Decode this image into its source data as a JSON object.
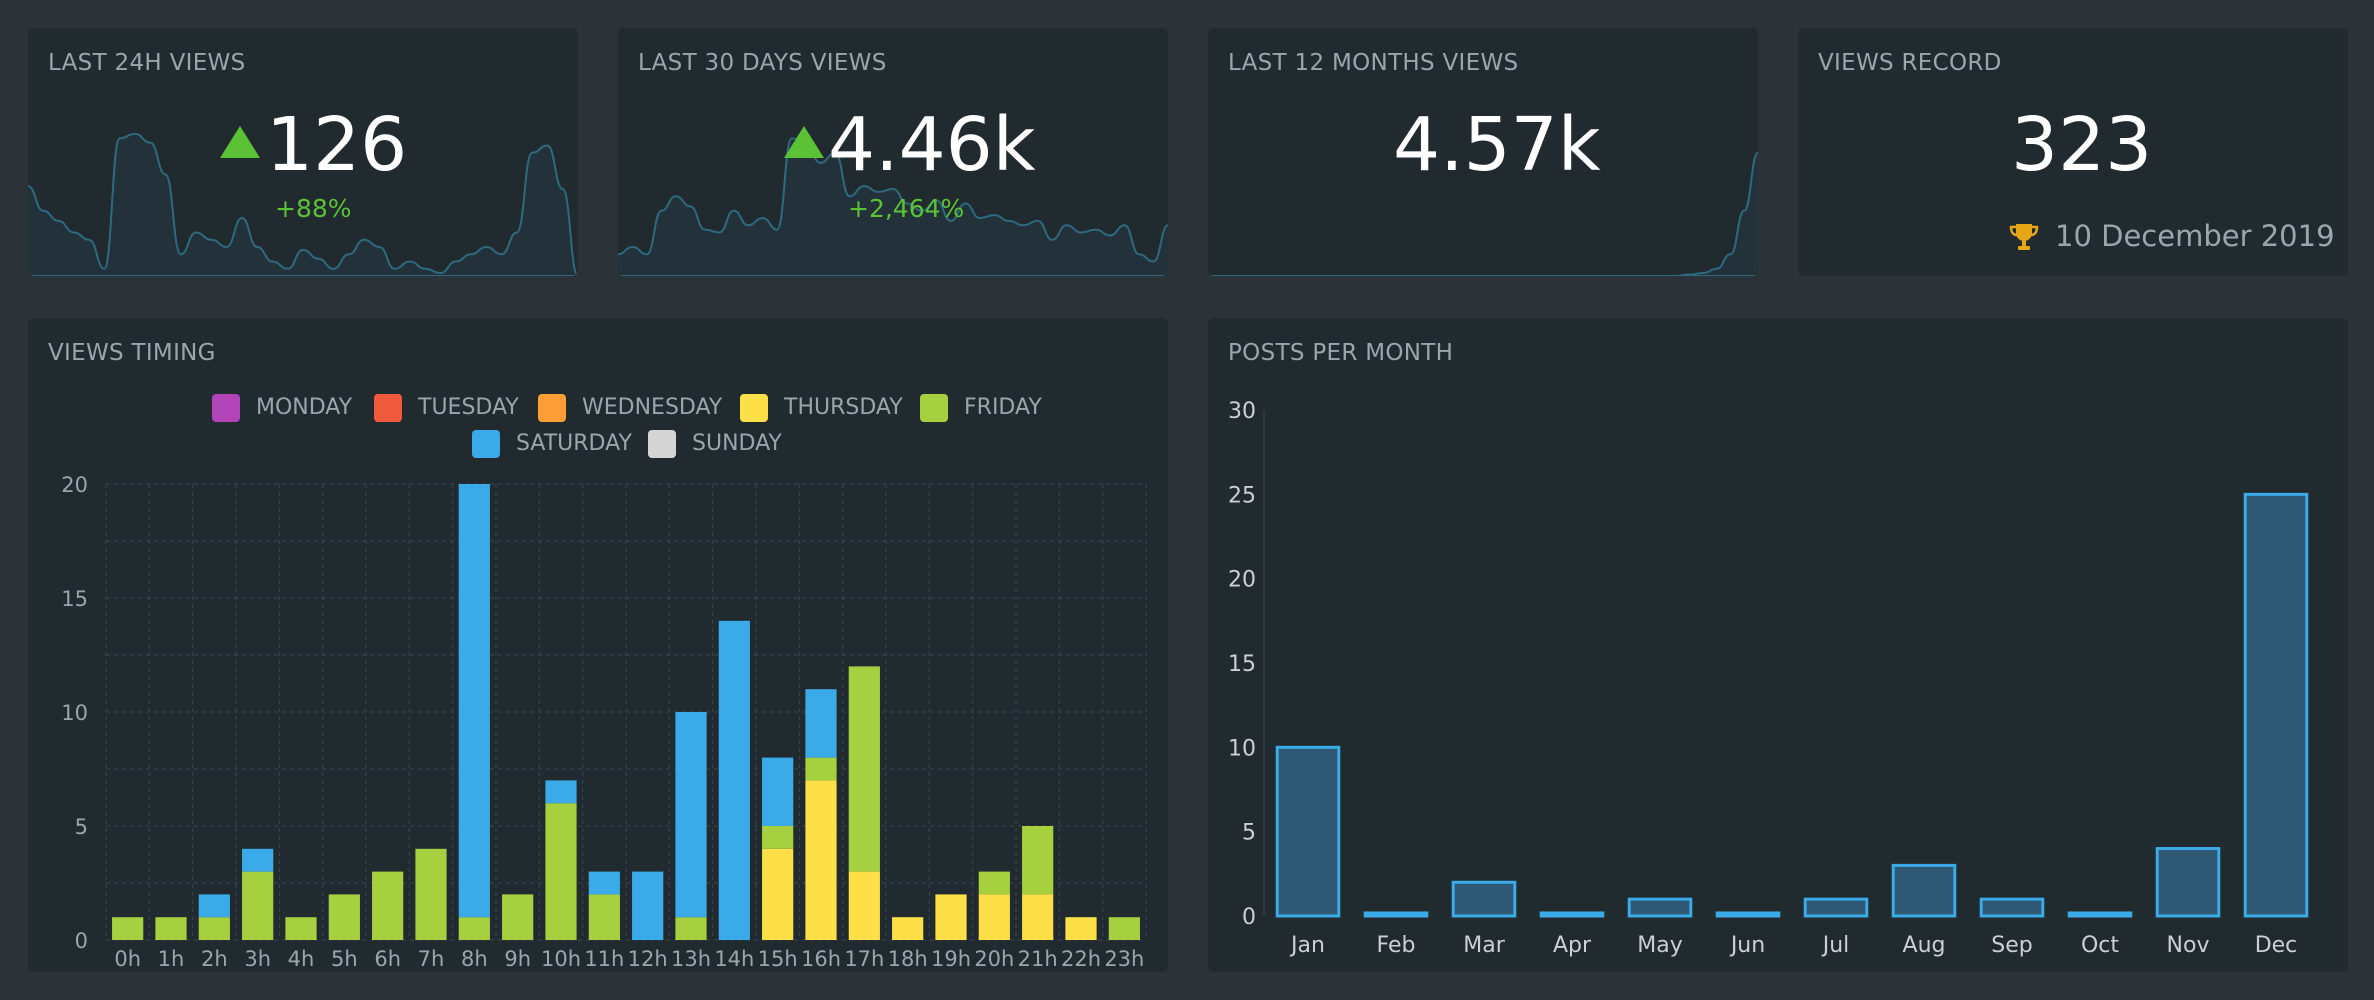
{
  "cards": {
    "last24h": {
      "title": "LAST 24H VIEWS",
      "value": "126",
      "change": "+88%"
    },
    "last30d": {
      "title": "LAST 30 DAYS VIEWS",
      "value": "4.46k",
      "change": "+2,464%"
    },
    "last12m": {
      "title": "LAST 12 MONTHS VIEWS",
      "value": "4.57k"
    },
    "record": {
      "title": "VIEWS RECORD",
      "value": "323",
      "date": "10 December 2019",
      "icon": "trophy-icon"
    }
  },
  "colors": {
    "up": "#5bc236",
    "spark_line": "#2e6a7f",
    "spark_fill": "#23313a",
    "saturday": "#3aabe8",
    "friday": "#a6d03f",
    "thursday": "#fde047",
    "posts_fill": "#2f5874",
    "posts_stroke": "#3aabe8"
  },
  "chart_data": [
    {
      "id": "views-timing",
      "type": "bar",
      "stacked": true,
      "title": "VIEWS TIMING",
      "categories": [
        "0h",
        "1h",
        "2h",
        "3h",
        "4h",
        "5h",
        "6h",
        "7h",
        "8h",
        "9h",
        "10h",
        "11h",
        "12h",
        "13h",
        "14h",
        "15h",
        "16h",
        "17h",
        "18h",
        "19h",
        "20h",
        "21h",
        "22h",
        "23h"
      ],
      "legend": [
        {
          "name": "MONDAY",
          "color": "#b144b8"
        },
        {
          "name": "TUESDAY",
          "color": "#f05a3c"
        },
        {
          "name": "WEDNESDAY",
          "color": "#fb9e35"
        },
        {
          "name": "THURSDAY",
          "color": "#fde047"
        },
        {
          "name": "FRIDAY",
          "color": "#a6d03f"
        },
        {
          "name": "SATURDAY",
          "color": "#3aabe8"
        },
        {
          "name": "SUNDAY",
          "color": "#d5d5d5"
        }
      ],
      "series": [
        {
          "name": "THURSDAY",
          "color": "#fde047",
          "values": [
            0,
            0,
            0,
            0,
            0,
            0,
            0,
            0,
            0,
            0,
            0,
            0,
            0,
            0,
            0,
            4,
            7,
            3,
            1,
            2,
            2,
            2,
            1,
            0
          ]
        },
        {
          "name": "FRIDAY",
          "color": "#a6d03f",
          "values": [
            1,
            1,
            1,
            3,
            1,
            2,
            3,
            4,
            1,
            2,
            6,
            2,
            0,
            1,
            0,
            1,
            1,
            9,
            0,
            0,
            1,
            3,
            0,
            1
          ]
        },
        {
          "name": "SATURDAY",
          "color": "#3aabe8",
          "values": [
            0,
            0,
            1,
            1,
            0,
            0,
            0,
            0,
            19,
            0,
            1,
            1,
            3,
            9,
            14,
            3,
            3,
            0,
            0,
            0,
            0,
            0,
            0,
            0
          ]
        }
      ],
      "yticks": [
        0,
        5,
        10,
        15,
        20
      ],
      "ylim": [
        0,
        20
      ]
    },
    {
      "id": "posts-per-month",
      "type": "bar",
      "title": "POSTS PER MONTH",
      "categories": [
        "Jan",
        "Feb",
        "Mar",
        "Apr",
        "May",
        "Jun",
        "Jul",
        "Aug",
        "Sep",
        "Oct",
        "Nov",
        "Dec"
      ],
      "values": [
        10,
        0,
        2,
        0,
        1,
        0,
        1,
        3,
        1,
        0,
        4,
        25
      ],
      "yticks": [
        0,
        5,
        10,
        15,
        20,
        25,
        30
      ],
      "ylim": [
        0,
        30
      ]
    }
  ],
  "sparklines": {
    "last24h": [
      0.62,
      0.45,
      0.38,
      0.3,
      0.25,
      0.05,
      0.95,
      0.98,
      0.92,
      0.7,
      0.15,
      0.3,
      0.25,
      0.2,
      0.4,
      0.2,
      0.1,
      0.05,
      0.18,
      0.12,
      0.05,
      0.15,
      0.25,
      0.2,
      0.05,
      0.1,
      0.05,
      0.02,
      0.1,
      0.15,
      0.2,
      0.15,
      0.3,
      0.85,
      0.9,
      0.6,
      0.0
    ],
    "last30d": [
      0.15,
      0.2,
      0.15,
      0.45,
      0.55,
      0.48,
      0.32,
      0.3,
      0.45,
      0.35,
      0.4,
      0.32,
      0.95,
      0.9,
      0.78,
      0.85,
      0.55,
      0.62,
      0.58,
      0.6,
      0.5,
      0.45,
      0.52,
      0.38,
      0.5,
      0.4,
      0.42,
      0.38,
      0.35,
      0.38,
      0.25,
      0.35,
      0.3,
      0.32,
      0.28,
      0.35,
      0.15,
      0.1,
      0.35
    ],
    "last12m": [
      0,
      0,
      0,
      0,
      0,
      0,
      0,
      0,
      0,
      0,
      0,
      0,
      0,
      0,
      0,
      0,
      0,
      0,
      0,
      0,
      0,
      0,
      0,
      0,
      0,
      0,
      0,
      0,
      0,
      0,
      0,
      0,
      0,
      0,
      0,
      0.01,
      0.02,
      0.05,
      0.15,
      0.45,
      0.85
    ]
  }
}
